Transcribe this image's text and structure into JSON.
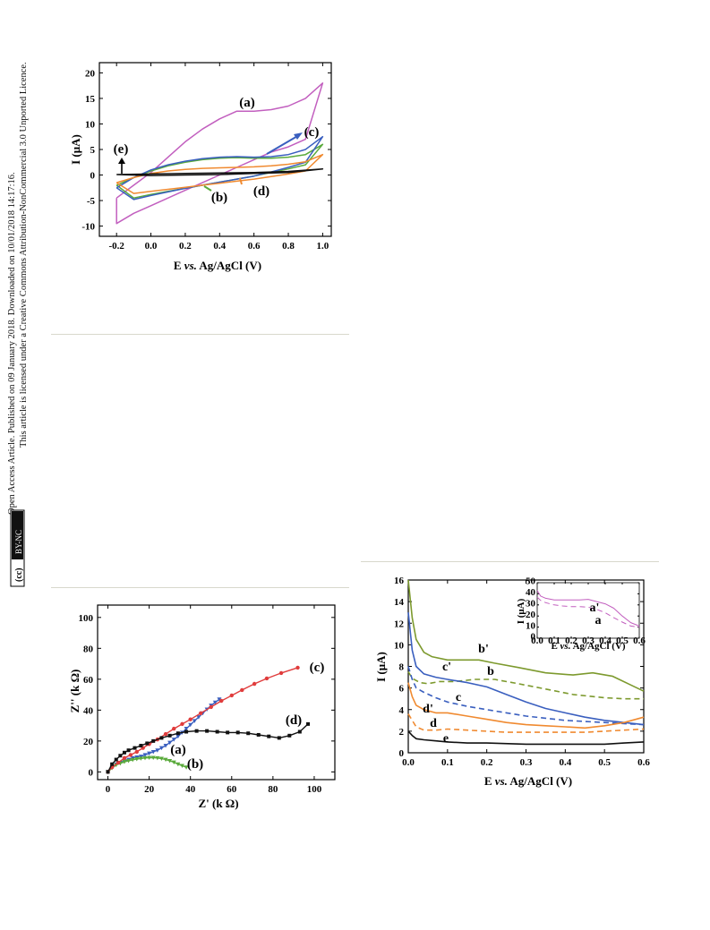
{
  "sidebar": {
    "line1": "Open Access Article. Published on 09 January 2018. Downloaded on 10/01/2018 14:17:16.",
    "line2": "This article is licensed under a Creative Commons Attribution-NonCommercial 3.0 Unported Licence.",
    "badge_cc": "(cc)",
    "badge_text": "BY-NC"
  },
  "chart_data": [
    {
      "type": "line",
      "id": "cv",
      "xlabel": "E vs. Ag/AgCl (V)",
      "ylabel": "I (μA)",
      "xlim": [
        -0.3,
        1.05
      ],
      "ylim": [
        -12,
        22
      ],
      "xticks": [
        "-0.2",
        "0.0",
        "0.2",
        "0.4",
        "0.6",
        "0.8",
        "1.0"
      ],
      "xtick_values": [
        -0.2,
        0.0,
        0.2,
        0.4,
        0.6,
        0.8,
        1.0
      ],
      "yticks": [
        "-10",
        "-5",
        "0",
        "5",
        "10",
        "15",
        "20"
      ],
      "ytick_values": [
        -10,
        -5,
        0,
        5,
        10,
        15,
        20
      ],
      "series": [
        {
          "name": "(a)",
          "color": "#c25fbf",
          "x": [
            -0.2,
            -0.1,
            0.0,
            0.1,
            0.2,
            0.3,
            0.4,
            0.5,
            0.6,
            0.7,
            0.8,
            0.9,
            1.0,
            0.9,
            0.8,
            0.7,
            0.6,
            0.5,
            0.4,
            0.3,
            0.2,
            0.1,
            0.0,
            -0.1,
            -0.2,
            -0.2
          ],
          "y": [
            -4.5,
            -2.0,
            0.5,
            3.5,
            6.5,
            9.0,
            11.0,
            12.5,
            12.5,
            12.8,
            13.5,
            15.0,
            18.0,
            7.0,
            5.5,
            4.5,
            3.0,
            1.5,
            0.0,
            -1.5,
            -3.0,
            -4.5,
            -6.0,
            -7.5,
            -9.5,
            -4.5
          ]
        },
        {
          "name": "(b)",
          "color": "#5aaa3c",
          "x": [
            -0.2,
            -0.1,
            0.0,
            0.1,
            0.2,
            0.3,
            0.4,
            0.5,
            0.6,
            0.7,
            0.8,
            0.9,
            1.0,
            0.9,
            0.8,
            0.7,
            0.6,
            0.5,
            0.4,
            0.3,
            0.2,
            0.1,
            0.0,
            -0.1,
            -0.2
          ],
          "y": [
            -2.0,
            -0.5,
            0.8,
            1.8,
            2.5,
            3.0,
            3.3,
            3.4,
            3.3,
            3.3,
            3.5,
            4.0,
            6.0,
            2.0,
            1.2,
            0.5,
            -0.2,
            -0.8,
            -1.4,
            -2.0,
            -2.6,
            -3.2,
            -3.8,
            -4.5,
            -2.0
          ]
        },
        {
          "name": "(c)",
          "color": "#3a5fbf",
          "x": [
            -0.2,
            -0.1,
            0.0,
            0.1,
            0.2,
            0.3,
            0.4,
            0.5,
            0.6,
            0.7,
            0.8,
            0.9,
            1.0,
            0.9,
            0.8,
            0.7,
            0.6,
            0.5,
            0.4,
            0.3,
            0.2,
            0.1,
            0.0,
            -0.1,
            -0.2
          ],
          "y": [
            -2.5,
            -0.5,
            1.0,
            2.0,
            2.7,
            3.2,
            3.5,
            3.6,
            3.5,
            3.6,
            4.0,
            5.0,
            7.5,
            2.5,
            1.5,
            0.6,
            -0.2,
            -0.8,
            -1.4,
            -2.0,
            -2.6,
            -3.3,
            -4.0,
            -4.8,
            -2.5
          ]
        },
        {
          "name": "(d)",
          "color": "#f08a30",
          "x": [
            -0.2,
            -0.1,
            0.0,
            0.1,
            0.2,
            0.3,
            0.4,
            0.5,
            0.6,
            0.7,
            0.8,
            0.9,
            1.0,
            0.9,
            0.8,
            0.7,
            0.6,
            0.5,
            0.4,
            0.3,
            0.2,
            0.1,
            0.0,
            -0.1,
            -0.2
          ],
          "y": [
            -1.5,
            -0.5,
            0.3,
            0.8,
            1.1,
            1.3,
            1.4,
            1.5,
            1.6,
            1.8,
            2.1,
            2.6,
            4.0,
            0.8,
            0.2,
            -0.3,
            -0.8,
            -1.2,
            -1.6,
            -2.0,
            -2.4,
            -2.8,
            -3.2,
            -3.6,
            -1.5
          ]
        },
        {
          "name": "(e)",
          "color": "#111111",
          "x": [
            -0.2,
            0.0,
            0.2,
            0.4,
            0.6,
            0.8,
            1.0,
            0.8,
            0.6,
            0.4,
            0.2,
            0.0,
            -0.2
          ],
          "y": [
            0.1,
            0.2,
            0.3,
            0.4,
            0.5,
            0.7,
            1.2,
            0.5,
            0.3,
            0.1,
            0.0,
            -0.1,
            0.1
          ]
        }
      ],
      "labels": [
        "(a)",
        "(b)",
        "(c)",
        "(d)",
        "(e)"
      ]
    },
    {
      "type": "line",
      "id": "eis",
      "xlabel": "Z' (k Ω)",
      "ylabel": "Z'' (k Ω)",
      "xlim": [
        -5,
        110
      ],
      "ylim": [
        -5,
        108
      ],
      "xticks": [
        "0",
        "20",
        "40",
        "60",
        "80",
        "100"
      ],
      "xtick_values": [
        0,
        20,
        40,
        60,
        80,
        100
      ],
      "yticks": [
        "0",
        "20",
        "40",
        "60",
        "80",
        "100"
      ],
      "ytick_values": [
        0,
        20,
        40,
        60,
        80,
        100
      ],
      "series": [
        {
          "name": "(a)",
          "color": "#3a5fbf",
          "marker": "triangle",
          "x": [
            0,
            2,
            4,
            6,
            8,
            10,
            12,
            14,
            16,
            18,
            20,
            22,
            24,
            26,
            28,
            30,
            32,
            34,
            36,
            38,
            40,
            42,
            44,
            46,
            48,
            50,
            52,
            54
          ],
          "y": [
            0,
            3,
            5,
            6,
            7,
            8,
            9,
            9.5,
            10,
            11,
            12,
            13,
            14,
            15.5,
            17,
            19,
            21,
            23,
            25.5,
            28,
            30.5,
            33,
            35.5,
            38,
            40.5,
            43,
            45,
            47
          ]
        },
        {
          "name": "(b)",
          "color": "#5aaa3c",
          "marker": "triangle",
          "x": [
            0,
            2,
            4,
            6,
            8,
            10,
            12,
            14,
            16,
            18,
            20,
            22,
            24,
            26,
            28,
            30,
            32,
            34,
            36,
            38
          ],
          "y": [
            0,
            2.5,
            4.5,
            5.5,
            6.5,
            7.2,
            7.8,
            8.3,
            8.7,
            9.0,
            9.2,
            9.2,
            9.0,
            8.6,
            8.0,
            7.2,
            6.2,
            5.0,
            4.0,
            3.0
          ]
        },
        {
          "name": "(c)",
          "color": "#e03c3c",
          "marker": "circle",
          "x": [
            0,
            2,
            5,
            8,
            11,
            14,
            17,
            20,
            24,
            28,
            32,
            36,
            40,
            45,
            50,
            55,
            60,
            65,
            71,
            77,
            84,
            92
          ],
          "y": [
            0,
            3,
            6,
            9,
            11,
            13,
            15.5,
            18,
            21,
            24.5,
            28,
            31,
            34,
            38,
            42,
            46,
            49.5,
            53,
            57,
            60.5,
            64,
            67.5
          ]
        },
        {
          "name": "(d)",
          "color": "#111111",
          "marker": "square",
          "x": [
            0,
            2,
            4,
            6,
            8,
            10,
            13,
            16,
            19,
            22,
            26,
            30,
            34,
            38,
            43,
            48,
            53,
            58,
            63,
            68,
            73,
            78,
            83,
            88,
            93,
            97
          ],
          "y": [
            0,
            5,
            8,
            10.5,
            12.5,
            14,
            15.5,
            17,
            18.5,
            20,
            22,
            23.5,
            25,
            26,
            26.5,
            26.5,
            26,
            25.5,
            25.5,
            25,
            24,
            23,
            22,
            23.5,
            26,
            31
          ]
        }
      ],
      "labels": [
        "(a)",
        "(b)",
        "(c)",
        "(d)"
      ]
    },
    {
      "type": "line",
      "id": "dpv",
      "xlabel": "E vs. Ag/AgCl (V)",
      "ylabel": "I (μA)",
      "xlim": [
        0,
        0.6
      ],
      "ylim": [
        0,
        16
      ],
      "xticks": [
        "0.0",
        "0.1",
        "0.2",
        "0.3",
        "0.4",
        "0.5",
        "0.6"
      ],
      "xtick_values": [
        0,
        0.1,
        0.2,
        0.3,
        0.4,
        0.5,
        0.6
      ],
      "yticks": [
        "0",
        "2",
        "4",
        "6",
        "8",
        "10",
        "12",
        "14",
        "16"
      ],
      "ytick_values": [
        0,
        2,
        4,
        6,
        8,
        10,
        12,
        14,
        16
      ],
      "series": [
        {
          "name": "b'",
          "color": "#7d9a2e",
          "dash": false,
          "x": [
            0.0,
            0.01,
            0.02,
            0.04,
            0.06,
            0.1,
            0.15,
            0.18,
            0.22,
            0.28,
            0.35,
            0.42,
            0.47,
            0.52,
            0.56,
            0.6
          ],
          "y": [
            16,
            12.5,
            10.5,
            9.3,
            8.9,
            8.6,
            8.6,
            8.6,
            8.3,
            7.9,
            7.4,
            7.2,
            7.4,
            7.1,
            6.4,
            5.7
          ]
        },
        {
          "name": "b",
          "color": "#7d9a2e",
          "dash": true,
          "x": [
            0.0,
            0.01,
            0.03,
            0.05,
            0.08,
            0.12,
            0.17,
            0.22,
            0.28,
            0.35,
            0.42,
            0.5,
            0.55,
            0.6
          ],
          "y": [
            7.5,
            6.9,
            6.5,
            6.4,
            6.6,
            6.6,
            6.8,
            6.8,
            6.4,
            5.9,
            5.4,
            5.1,
            5.0,
            5.0
          ]
        },
        {
          "name": "c'",
          "color": "#3a5fbf",
          "dash": false,
          "x": [
            0.0,
            0.01,
            0.02,
            0.04,
            0.07,
            0.1,
            0.15,
            0.2,
            0.25,
            0.3,
            0.35,
            0.4,
            0.45,
            0.5,
            0.55,
            0.6
          ],
          "y": [
            13,
            9.5,
            8.0,
            7.3,
            7.0,
            6.8,
            6.5,
            6.1,
            5.4,
            4.7,
            4.1,
            3.7,
            3.3,
            3.0,
            2.8,
            2.6
          ]
        },
        {
          "name": "c",
          "color": "#3a5fbf",
          "dash": true,
          "x": [
            0.0,
            0.01,
            0.02,
            0.04,
            0.07,
            0.1,
            0.15,
            0.2,
            0.25,
            0.3,
            0.35,
            0.4,
            0.45,
            0.5,
            0.55,
            0.6
          ],
          "y": [
            8.0,
            6.8,
            6.0,
            5.6,
            5.1,
            4.7,
            4.3,
            4.0,
            3.7,
            3.4,
            3.2,
            3.0,
            2.9,
            2.8,
            2.7,
            2.6
          ]
        },
        {
          "name": "d'",
          "color": "#f08a30",
          "dash": false,
          "x": [
            0.0,
            0.01,
            0.02,
            0.04,
            0.07,
            0.1,
            0.15,
            0.2,
            0.25,
            0.3,
            0.35,
            0.4,
            0.45,
            0.5,
            0.55,
            0.6
          ],
          "y": [
            6.5,
            5.2,
            4.4,
            4.0,
            3.7,
            3.7,
            3.4,
            3.1,
            2.8,
            2.6,
            2.5,
            2.4,
            2.3,
            2.5,
            2.8,
            3.3
          ]
        },
        {
          "name": "d",
          "color": "#f08a30",
          "dash": true,
          "x": [
            0.0,
            0.01,
            0.02,
            0.04,
            0.07,
            0.1,
            0.15,
            0.2,
            0.25,
            0.3,
            0.35,
            0.4,
            0.45,
            0.5,
            0.55,
            0.6
          ],
          "y": [
            3.6,
            3.0,
            2.4,
            2.1,
            2.1,
            2.2,
            2.1,
            2.0,
            1.9,
            1.9,
            1.9,
            1.9,
            1.9,
            2.0,
            2.1,
            2.2
          ]
        },
        {
          "name": "e",
          "color": "#111111",
          "dash": false,
          "x": [
            0.0,
            0.01,
            0.02,
            0.04,
            0.07,
            0.1,
            0.15,
            0.2,
            0.3,
            0.4,
            0.5,
            0.55,
            0.6
          ],
          "y": [
            2.0,
            1.6,
            1.3,
            1.2,
            1.1,
            1.0,
            0.9,
            0.9,
            0.8,
            0.8,
            0.8,
            0.9,
            1.0
          ]
        }
      ],
      "labels": [
        "b'",
        "b",
        "c'",
        "c",
        "d'",
        "d",
        "e"
      ],
      "inset": {
        "xlabel": "E vs. Ag/AgCl (V)",
        "ylabel": "I (μA)",
        "xlim": [
          0,
          0.6
        ],
        "ylim": [
          0,
          50
        ],
        "xticks": [
          "0.0",
          "0.1",
          "0.2",
          "0.3",
          "0.4",
          "0.5",
          "0.6"
        ],
        "xtick_values": [
          0,
          0.1,
          0.2,
          0.3,
          0.4,
          0.5,
          0.6
        ],
        "yticks": [
          "0",
          "10",
          "20",
          "30",
          "40",
          "50"
        ],
        "ytick_values": [
          0,
          10,
          20,
          30,
          40,
          50
        ],
        "series": [
          {
            "name": "a'",
            "color": "#c25fbf",
            "dash": false,
            "x": [
              0.0,
              0.02,
              0.05,
              0.1,
              0.15,
              0.2,
              0.25,
              0.3,
              0.35,
              0.4,
              0.45,
              0.5,
              0.55,
              0.6
            ],
            "y": [
              43,
              38,
              36,
              34.5,
              34.5,
              34.5,
              34.5,
              35,
              33,
              31,
              27,
              20,
              14,
              11
            ]
          },
          {
            "name": "a",
            "color": "#c25fbf",
            "dash": true,
            "x": [
              0.0,
              0.02,
              0.05,
              0.1,
              0.15,
              0.2,
              0.25,
              0.3,
              0.35,
              0.4,
              0.45,
              0.5,
              0.55,
              0.6
            ],
            "y": [
              37,
              34,
              32,
              30,
              29,
              28.5,
              28.5,
              28,
              26,
              23,
              18.5,
              14.5,
              11,
              10
            ]
          }
        ],
        "labels": [
          "a'",
          "a"
        ]
      }
    }
  ]
}
